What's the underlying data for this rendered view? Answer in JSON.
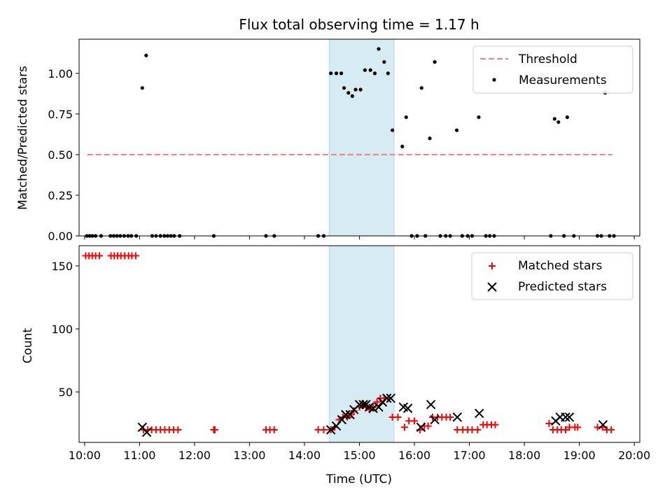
{
  "chart_data": [
    {
      "type": "scatter",
      "title": "Flux total observing time = 1.17 h",
      "xlabel": "",
      "ylabel": "Matched/Predicted stars",
      "xlim": [
        9.9,
        20.1
      ],
      "ylim": [
        0.0,
        1.21
      ],
      "xticks": [
        10,
        11,
        12,
        13,
        14,
        15,
        16,
        17,
        18,
        19,
        20
      ],
      "yticks": [
        0.0,
        0.25,
        0.5,
        0.75,
        1.0
      ],
      "ytick_labels": [
        "0.00",
        "0.25",
        "0.50",
        "0.75",
        "1.00"
      ],
      "shaded_region": {
        "x": [
          14.45,
          15.63
        ],
        "color": "#add8e6"
      },
      "legend": {
        "position": "upper-right",
        "entries": [
          "Threshold",
          "Measurements"
        ]
      },
      "series": [
        {
          "name": "Threshold",
          "kind": "dashed-line",
          "color": "#f08080",
          "x": [
            10.05,
            19.6
          ],
          "y": [
            0.5,
            0.5
          ]
        },
        {
          "name": "Measurements",
          "kind": "points",
          "color": "#000000",
          "points": [
            [
              10.04,
              0
            ],
            [
              10.09,
              0
            ],
            [
              10.14,
              0
            ],
            [
              10.2,
              0
            ],
            [
              10.3,
              0
            ],
            [
              10.47,
              0
            ],
            [
              10.53,
              0
            ],
            [
              10.59,
              0
            ],
            [
              10.65,
              0
            ],
            [
              10.72,
              0
            ],
            [
              10.79,
              0
            ],
            [
              10.85,
              0
            ],
            [
              10.94,
              0
            ],
            [
              11.05,
              0.91
            ],
            [
              11.12,
              1.11
            ],
            [
              11.23,
              0
            ],
            [
              11.3,
              0
            ],
            [
              11.38,
              0
            ],
            [
              11.45,
              0
            ],
            [
              11.51,
              0
            ],
            [
              11.57,
              0
            ],
            [
              11.63,
              0
            ],
            [
              11.73,
              0
            ],
            [
              12.35,
              0
            ],
            [
              13.3,
              0
            ],
            [
              13.45,
              0
            ],
            [
              14.25,
              0
            ],
            [
              14.35,
              0
            ],
            [
              14.48,
              1.0
            ],
            [
              14.58,
              1.0
            ],
            [
              14.67,
              1.0
            ],
            [
              14.72,
              0.91
            ],
            [
              14.8,
              0.88
            ],
            [
              14.87,
              0.86
            ],
            [
              14.93,
              0.9
            ],
            [
              15.02,
              0.9
            ],
            [
              15.1,
              1.02
            ],
            [
              15.2,
              1.02
            ],
            [
              15.28,
              1.0
            ],
            [
              15.35,
              1.15
            ],
            [
              15.45,
              1.07
            ],
            [
              15.52,
              1.0
            ],
            [
              15.6,
              0.65
            ],
            [
              15.78,
              0.55
            ],
            [
              15.85,
              0.73
            ],
            [
              15.95,
              0
            ],
            [
              16.05,
              0
            ],
            [
              16.13,
              0.91
            ],
            [
              16.2,
              0
            ],
            [
              16.28,
              0.6
            ],
            [
              16.37,
              1.07
            ],
            [
              16.47,
              0
            ],
            [
              16.57,
              0
            ],
            [
              16.65,
              0
            ],
            [
              16.77,
              0.65
            ],
            [
              16.87,
              0
            ],
            [
              16.97,
              0
            ],
            [
              17.05,
              0
            ],
            [
              17.17,
              0.73
            ],
            [
              17.3,
              0
            ],
            [
              17.37,
              0
            ],
            [
              17.45,
              0
            ],
            [
              18.48,
              0
            ],
            [
              18.55,
              0.72
            ],
            [
              18.62,
              0.7
            ],
            [
              18.72,
              0
            ],
            [
              18.78,
              0.73
            ],
            [
              18.9,
              0
            ],
            [
              19.33,
              0
            ],
            [
              19.4,
              0
            ],
            [
              19.47,
              0.88
            ],
            [
              19.55,
              0
            ],
            [
              19.63,
              0
            ]
          ]
        }
      ]
    },
    {
      "type": "scatter",
      "title": "",
      "xlabel": "Time (UTC)",
      "ylabel": "Count",
      "xlim": [
        9.9,
        20.1
      ],
      "ylim": [
        10,
        166
      ],
      "xticks": [
        10,
        11,
        12,
        13,
        14,
        15,
        16,
        17,
        18,
        19,
        20
      ],
      "xtick_labels": [
        "10:00",
        "11:00",
        "12:00",
        "13:00",
        "14:00",
        "15:00",
        "16:00",
        "17:00",
        "18:00",
        "19:00",
        "20:00"
      ],
      "yticks": [
        50,
        100,
        150
      ],
      "ytick_labels": [
        "50",
        "100",
        "150"
      ],
      "shaded_region": {
        "x": [
          14.45,
          15.63
        ],
        "color": "#add8e6"
      },
      "legend": {
        "position": "upper-right",
        "entries": [
          "Matched stars",
          "Predicted stars"
        ]
      },
      "series": [
        {
          "name": "Matched stars",
          "marker": "+",
          "color": "#ff0000",
          "points": [
            [
              10.02,
              158
            ],
            [
              10.08,
              158
            ],
            [
              10.14,
              158
            ],
            [
              10.2,
              158
            ],
            [
              10.27,
              158
            ],
            [
              10.48,
              158
            ],
            [
              10.54,
              158
            ],
            [
              10.6,
              158
            ],
            [
              10.66,
              158
            ],
            [
              10.73,
              158
            ],
            [
              10.8,
              158
            ],
            [
              10.86,
              158
            ],
            [
              10.93,
              158
            ],
            [
              11.07,
              20
            ],
            [
              11.15,
              20
            ],
            [
              11.22,
              20
            ],
            [
              11.3,
              20
            ],
            [
              11.38,
              20
            ],
            [
              11.46,
              20
            ],
            [
              11.54,
              20
            ],
            [
              11.62,
              20
            ],
            [
              11.7,
              20
            ],
            [
              12.35,
              20
            ],
            [
              12.37,
              20
            ],
            [
              13.3,
              20
            ],
            [
              13.37,
              20
            ],
            [
              13.45,
              20
            ],
            [
              14.25,
              20
            ],
            [
              14.35,
              20
            ],
            [
              14.48,
              20
            ],
            [
              14.55,
              22
            ],
            [
              14.63,
              28
            ],
            [
              14.7,
              30
            ],
            [
              14.78,
              30
            ],
            [
              14.85,
              32
            ],
            [
              14.9,
              35
            ],
            [
              15.0,
              38
            ],
            [
              15.07,
              40
            ],
            [
              15.12,
              38
            ],
            [
              15.18,
              36
            ],
            [
              15.25,
              38
            ],
            [
              15.32,
              42
            ],
            [
              15.38,
              45
            ],
            [
              15.45,
              45
            ],
            [
              15.52,
              45
            ],
            [
              15.6,
              30
            ],
            [
              15.7,
              30
            ],
            [
              15.82,
              22
            ],
            [
              15.9,
              27
            ],
            [
              16.0,
              27
            ],
            [
              16.1,
              20
            ],
            [
              16.18,
              23
            ],
            [
              16.25,
              23
            ],
            [
              16.33,
              30
            ],
            [
              16.42,
              30
            ],
            [
              16.5,
              30
            ],
            [
              16.58,
              30
            ],
            [
              16.65,
              30
            ],
            [
              16.78,
              20
            ],
            [
              16.88,
              20
            ],
            [
              16.97,
              20
            ],
            [
              17.05,
              20
            ],
            [
              17.15,
              20
            ],
            [
              17.25,
              24
            ],
            [
              17.32,
              24
            ],
            [
              17.4,
              24
            ],
            [
              17.47,
              24
            ],
            [
              18.45,
              25
            ],
            [
              18.52,
              20
            ],
            [
              18.6,
              20
            ],
            [
              18.67,
              20
            ],
            [
              18.75,
              20
            ],
            [
              18.82,
              22
            ],
            [
              18.92,
              22
            ],
            [
              18.97,
              22
            ],
            [
              19.33,
              22
            ],
            [
              19.42,
              22
            ],
            [
              19.5,
              20
            ],
            [
              19.58,
              20
            ]
          ]
        },
        {
          "name": "Predicted stars",
          "marker": "x",
          "color": "#000000",
          "points": [
            [
              11.05,
              22
            ],
            [
              11.13,
              18
            ],
            [
              14.48,
              20
            ],
            [
              14.58,
              23
            ],
            [
              14.68,
              28
            ],
            [
              14.75,
              32
            ],
            [
              14.83,
              32
            ],
            [
              14.9,
              36
            ],
            [
              15.0,
              40
            ],
            [
              15.07,
              40
            ],
            [
              15.12,
              40
            ],
            [
              15.18,
              38
            ],
            [
              15.25,
              37
            ],
            [
              15.35,
              38
            ],
            [
              15.42,
              42
            ],
            [
              15.5,
              45
            ],
            [
              15.57,
              45
            ],
            [
              15.8,
              38
            ],
            [
              15.88,
              37
            ],
            [
              16.12,
              22
            ],
            [
              16.3,
              40
            ],
            [
              16.37,
              28
            ],
            [
              16.78,
              30
            ],
            [
              17.18,
              33
            ],
            [
              18.57,
              27
            ],
            [
              18.65,
              30
            ],
            [
              18.75,
              30
            ],
            [
              18.82,
              30
            ],
            [
              19.43,
              24
            ]
          ]
        }
      ]
    }
  ]
}
